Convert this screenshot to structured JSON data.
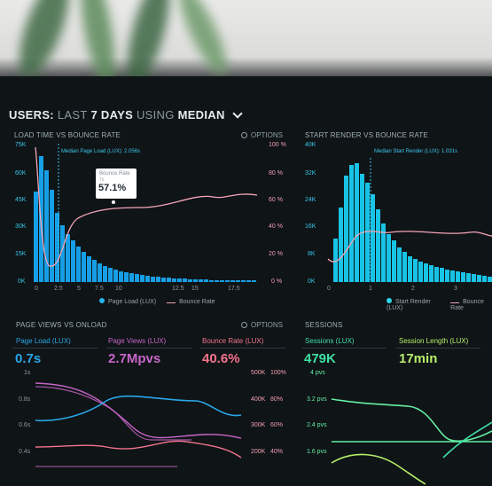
{
  "header": {
    "title_users": "USERS:",
    "title_last": "LAST",
    "title_days": "7 DAYS",
    "title_using": "USING",
    "title_median": "MEDIAN"
  },
  "panels": {
    "load_time": {
      "title": "LOAD TIME VS BOUNCE RATE",
      "options": "OPTIONS",
      "median_label": "Median Page Load (LUX): 2.056s",
      "tooltip": {
        "label": "Bounce Rate",
        "sub": "7s",
        "value": "57.1%"
      },
      "y_left": [
        "75K",
        "60K",
        "45K",
        "30K",
        "15K",
        "0K"
      ],
      "y_right": [
        "100 %",
        "80 %",
        "60 %",
        "40 %",
        "20 %",
        "0 %"
      ],
      "x": [
        "0",
        "2.5",
        "5",
        "7.5",
        "10",
        "12.5",
        "15",
        "17.5"
      ],
      "legend": {
        "a": "Page Load (LUX)",
        "b": "Bounce Rate"
      }
    },
    "start_render": {
      "title": "START RENDER VS BOUNCE RATE",
      "median_label": "Median Start Render (LUX): 1.031s",
      "y_left": [
        "40K",
        "32K",
        "24K",
        "16K",
        "8K",
        "0K"
      ],
      "x": [
        "0",
        "1",
        "2",
        "3"
      ],
      "legend": {
        "a": "Start Render (LUX)",
        "b": "Bounce Rate"
      }
    },
    "page_views": {
      "title": "PAGE VIEWS VS ONLOAD",
      "options": "OPTIONS",
      "metrics": [
        {
          "label": "Page Load (LUX)",
          "value": "0.7s",
          "color": "#2aa6e8"
        },
        {
          "label": "Page Views (LUX)",
          "value": "2.7Mpvs",
          "color": "#c766c9"
        },
        {
          "label": "Bounce Rate (LUX)",
          "value": "40.6%",
          "color": "#f4748e"
        }
      ],
      "y_left": [
        "1s",
        "0.8s",
        "0.6s",
        "0.4s"
      ],
      "y_mid": [
        "500K",
        "400K",
        "300K",
        "200K"
      ],
      "y_right": [
        "100%",
        "80%",
        "60%",
        "40%"
      ]
    },
    "sessions": {
      "title": "SESSIONS",
      "metrics": [
        {
          "label": "Sessions (LUX)",
          "value": "479K",
          "color": "#3fe0a4"
        },
        {
          "label": "Session Length (LUX)",
          "value": "17min",
          "color": "#b7ef6a"
        }
      ],
      "y_left": [
        "4 pvs",
        "3.2 pvs",
        "2.4 pvs",
        "1.6 pvs"
      ]
    }
  }
}
